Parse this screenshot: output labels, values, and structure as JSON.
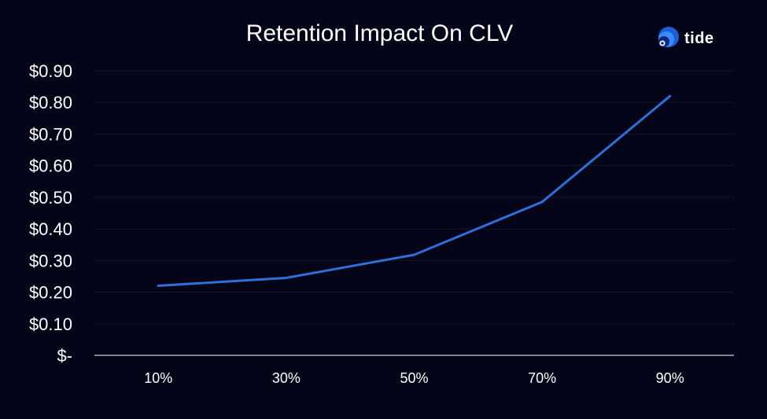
{
  "brand": {
    "name": "tide",
    "logo_icon": "tide-logo-icon",
    "logo_colors": [
      "#1a5fd6",
      "#3b8cff",
      "#0a2a80"
    ]
  },
  "colors": {
    "background": "#05051a",
    "line": "#2e6fd8",
    "gridline": "#15152e",
    "axis": "#ffffff",
    "text": "#ffffff"
  },
  "chart_data": {
    "type": "line",
    "title": "Retention Impact On CLV",
    "xlabel": "",
    "ylabel": "",
    "categories": [
      "10%",
      "30%",
      "50%",
      "70%",
      "90%"
    ],
    "series": [
      {
        "values": [
          0.22,
          0.245,
          0.318,
          0.485,
          0.82
        ]
      }
    ],
    "ylim": [
      0,
      0.9
    ],
    "y_ticks": [
      0,
      0.1,
      0.2,
      0.3,
      0.4,
      0.5,
      0.6,
      0.7,
      0.8,
      0.9
    ],
    "y_tick_labels": [
      "$-",
      "$0.10",
      "$0.20",
      "$0.30",
      "$0.40",
      "$0.50",
      "$0.60",
      "$0.70",
      "$0.80",
      "$0.90"
    ],
    "grid": true,
    "legend": "none"
  }
}
